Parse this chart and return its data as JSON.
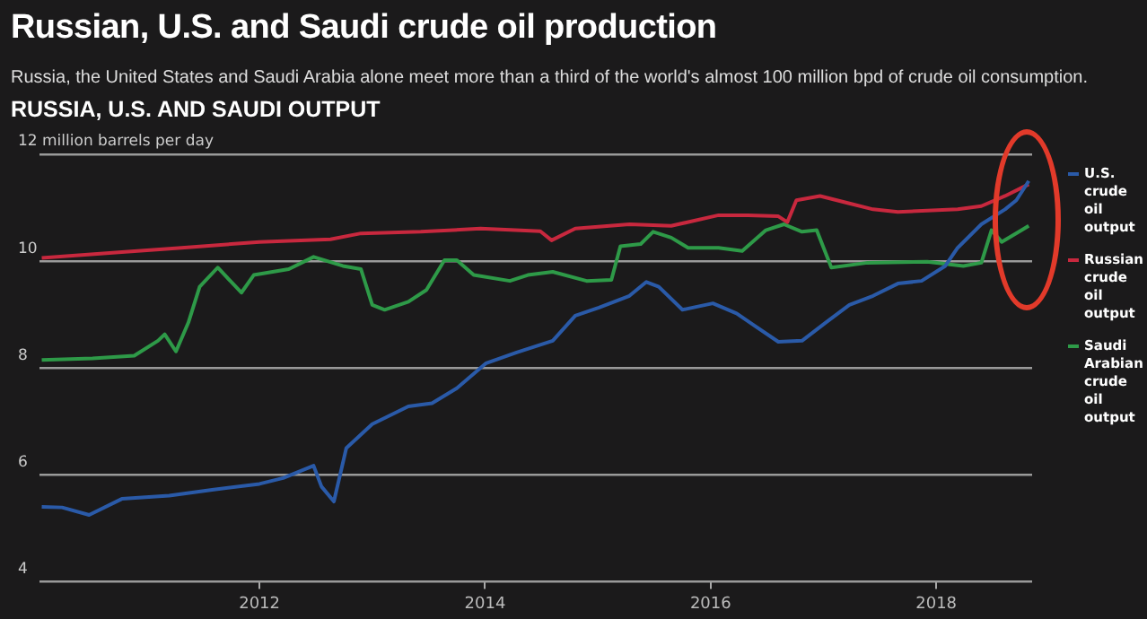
{
  "chart_data": {
    "type": "line",
    "title": "Russian, U.S. and Saudi crude oil production",
    "subtitle": "Russia, the United States and Saudi Arabia alone meet more than a third of the world's almost 100 million bpd of crude oil consumption.",
    "annotations": [
      "RUSSIA, U.S. AND SAUDI OUTPUT"
    ],
    "xlim": [
      2010.05,
      2018.85
    ],
    "xticks": [
      2012,
      2014,
      2016,
      2018
    ],
    "ylim": [
      4,
      12
    ],
    "yticks": [
      4,
      6,
      8,
      10,
      {
        "value": 12,
        "label": "12 million barrels per day"
      }
    ],
    "grid": "y",
    "legend": "right",
    "marker": "none",
    "line_style": "solid",
    "series": [
      {
        "name": "U.S. crude oil output",
        "color": "#2a5aa8",
        "x": [
          2010.07,
          2010.25,
          2010.49,
          2010.78,
          2011.2,
          2011.58,
          2012,
          2012.21,
          2012.48,
          2012.55,
          2012.66,
          2012.77,
          2013,
          2013.32,
          2013.53,
          2013.75,
          2014.01,
          2014.28,
          2014.6,
          2014.8,
          2015.01,
          2015.28,
          2015.43,
          2015.54,
          2015.75,
          2016.02,
          2016.23,
          2016.39,
          2016.6,
          2016.81,
          2017.02,
          2017.23,
          2017.44,
          2017.66,
          2017.87,
          2018.08,
          2018.19,
          2018.4,
          2018.61,
          2018.71,
          2018.82
        ],
        "values": [
          5.4,
          5.39,
          5.25,
          5.55,
          5.61,
          5.72,
          5.83,
          5.94,
          6.17,
          5.78,
          5.5,
          6.5,
          6.95,
          7.28,
          7.34,
          7.62,
          8.09,
          8.29,
          8.51,
          8.98,
          9.13,
          9.35,
          9.61,
          9.52,
          9.09,
          9.21,
          9.02,
          8.79,
          8.49,
          8.51,
          8.85,
          9.18,
          9.35,
          9.58,
          9.63,
          9.91,
          10.25,
          10.69,
          10.97,
          11.14,
          11.5
        ]
      },
      {
        "name": "Russian crude oil output",
        "color": "#c8283e",
        "x": [
          2010.07,
          2010.78,
          2011.31,
          2012,
          2012.63,
          2012.9,
          2013.43,
          2013.96,
          2014.49,
          2014.59,
          2014.8,
          2015.28,
          2015.65,
          2016.07,
          2016.33,
          2016.6,
          2016.68,
          2016.76,
          2016.97,
          2017.23,
          2017.44,
          2017.66,
          2018.19,
          2018.4,
          2018.61,
          2018.82
        ],
        "values": [
          10.06,
          10.17,
          10.25,
          10.36,
          10.41,
          10.52,
          10.55,
          10.61,
          10.56,
          10.39,
          10.61,
          10.69,
          10.66,
          10.86,
          10.86,
          10.84,
          10.73,
          11.14,
          11.22,
          11.08,
          10.97,
          10.92,
          10.97,
          11.03,
          11.22,
          11.44
        ]
      },
      {
        "name": "Saudi Arabian crude oil output",
        "color": "#2e9a48",
        "x": [
          2010.07,
          2010.52,
          2010.89,
          2011.1,
          2011.16,
          2011.26,
          2011.37,
          2011.47,
          2011.63,
          2011.84,
          2011.95,
          2012.26,
          2012.48,
          2012.74,
          2012.9,
          2013,
          2013.11,
          2013.32,
          2013.48,
          2013.64,
          2013.75,
          2013.9,
          2014.22,
          2014.38,
          2014.6,
          2014.9,
          2015.12,
          2015.2,
          2015.38,
          2015.49,
          2015.65,
          2015.8,
          2016.07,
          2016.28,
          2016.49,
          2016.65,
          2016.81,
          2016.94,
          2017.07,
          2017.39,
          2017.92,
          2018.24,
          2018.4,
          2018.49,
          2018.58,
          2018.82
        ],
        "values": [
          8.15,
          8.18,
          8.23,
          8.51,
          8.63,
          8.31,
          8.85,
          9.52,
          9.88,
          9.41,
          9.74,
          9.85,
          10.08,
          9.91,
          9.85,
          9.18,
          9.09,
          9.24,
          9.46,
          10.02,
          10.02,
          9.74,
          9.63,
          9.74,
          9.8,
          9.63,
          9.65,
          10.28,
          10.32,
          10.55,
          10.44,
          10.25,
          10.25,
          10.19,
          10.58,
          10.69,
          10.55,
          10.58,
          9.88,
          9.97,
          9.99,
          9.91,
          9.97,
          10.58,
          10.36,
          10.66
        ]
      }
    ]
  }
}
